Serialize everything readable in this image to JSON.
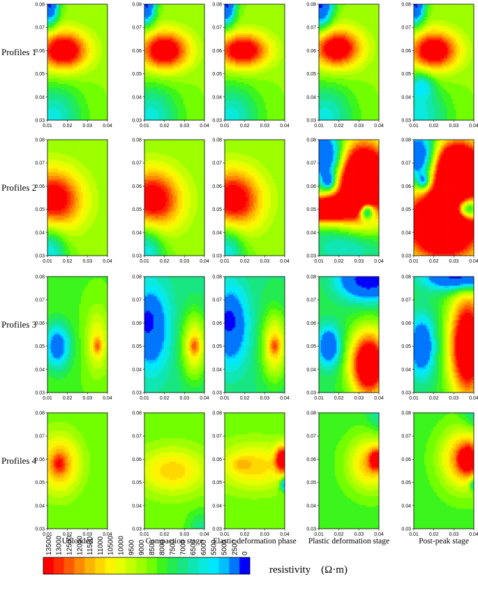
{
  "chart_data": {
    "type": "heatmap",
    "rows": [
      "Profiles 1",
      "Profiles 2",
      "Profiles 3",
      "Profiles 4"
    ],
    "columns": [
      "Unloaded",
      "Compaction stage",
      "Elastic deformation phase",
      "Plastic deformation stage",
      "Post-peak stage"
    ],
    "x_ticks": [
      "0.01",
      "0.02",
      "0.03",
      "0.04"
    ],
    "y_ticks": [
      "0.03",
      "0.04",
      "0.05",
      "0.06",
      "0.07",
      "0.08"
    ],
    "xlim": [
      0.01,
      0.04
    ],
    "ylim": [
      0.03,
      0.08
    ],
    "colorbar": {
      "title": "resistivity (Ω·m)",
      "levels": [
        "13500",
        "13000",
        "12500",
        "12000",
        "11500",
        "11000",
        "10500",
        "10000",
        "9500",
        "9000",
        "8500",
        "8000",
        "7500",
        "7000",
        "6500",
        "6000",
        "5500",
        "5000",
        "2500",
        "0"
      ],
      "colors": [
        "#ff0000",
        "#ff2a00",
        "#ff5a00",
        "#ff8a00",
        "#ffb400",
        "#ffd800",
        "#fff400",
        "#e6ff00",
        "#c4ff00",
        "#9dff00",
        "#72ff00",
        "#3cf51c",
        "#22ec52",
        "#18e682",
        "#10e6b2",
        "#0aeadc",
        "#00e8ff",
        "#00bfff",
        "#0076ff",
        "#0000ff"
      ]
    },
    "panels": [
      {
        "row": 0,
        "col": 0,
        "base": 8800,
        "features": [
          {
            "x": 0.018,
            "y": 0.06,
            "sx": 0.0085,
            "sy": 0.0058,
            "amp": 6200
          },
          {
            "x": 0.011,
            "y": 0.08,
            "sx": 0.003,
            "sy": 0.006,
            "amp": -6500
          },
          {
            "x": 0.013,
            "y": 0.031,
            "sx": 0.01,
            "sy": 0.01,
            "amp": -2800
          }
        ]
      },
      {
        "row": 0,
        "col": 1,
        "base": 8800,
        "features": [
          {
            "x": 0.02,
            "y": 0.06,
            "sx": 0.0085,
            "sy": 0.0058,
            "amp": 6100
          },
          {
            "x": 0.011,
            "y": 0.08,
            "sx": 0.003,
            "sy": 0.006,
            "amp": -6500
          },
          {
            "x": 0.013,
            "y": 0.031,
            "sx": 0.01,
            "sy": 0.01,
            "amp": -2800
          }
        ]
      },
      {
        "row": 0,
        "col": 2,
        "base": 8800,
        "features": [
          {
            "x": 0.019,
            "y": 0.06,
            "sx": 0.009,
            "sy": 0.0052,
            "amp": 5900
          },
          {
            "x": 0.011,
            "y": 0.08,
            "sx": 0.003,
            "sy": 0.006,
            "amp": -6500
          },
          {
            "x": 0.013,
            "y": 0.031,
            "sx": 0.01,
            "sy": 0.01,
            "amp": -2800
          }
        ]
      },
      {
        "row": 0,
        "col": 3,
        "base": 8800,
        "features": [
          {
            "x": 0.019,
            "y": 0.061,
            "sx": 0.0085,
            "sy": 0.0058,
            "amp": 6000
          },
          {
            "x": 0.011,
            "y": 0.08,
            "sx": 0.004,
            "sy": 0.007,
            "amp": -6500
          },
          {
            "x": 0.013,
            "y": 0.031,
            "sx": 0.01,
            "sy": 0.01,
            "amp": -2800
          }
        ]
      },
      {
        "row": 0,
        "col": 4,
        "base": 8800,
        "features": [
          {
            "x": 0.02,
            "y": 0.06,
            "sx": 0.0085,
            "sy": 0.0058,
            "amp": 6100
          },
          {
            "x": 0.011,
            "y": 0.08,
            "sx": 0.003,
            "sy": 0.006,
            "amp": -6500
          },
          {
            "x": 0.014,
            "y": 0.045,
            "sx": 0.004,
            "sy": 0.004,
            "amp": -2500
          },
          {
            "x": 0.013,
            "y": 0.031,
            "sx": 0.01,
            "sy": 0.01,
            "amp": -2800
          }
        ]
      },
      {
        "row": 1,
        "col": 0,
        "base": 8800,
        "features": [
          {
            "x": 0.013,
            "y": 0.054,
            "sx": 0.01,
            "sy": 0.009,
            "amp": 5800
          },
          {
            "x": 0.011,
            "y": 0.031,
            "sx": 0.006,
            "sy": 0.01,
            "amp": -3200
          }
        ]
      },
      {
        "row": 1,
        "col": 1,
        "base": 8800,
        "features": [
          {
            "x": 0.014,
            "y": 0.054,
            "sx": 0.01,
            "sy": 0.009,
            "amp": 5800
          },
          {
            "x": 0.011,
            "y": 0.031,
            "sx": 0.006,
            "sy": 0.01,
            "amp": -3200
          }
        ]
      },
      {
        "row": 1,
        "col": 2,
        "base": 8800,
        "features": [
          {
            "x": 0.014,
            "y": 0.054,
            "sx": 0.01,
            "sy": 0.009,
            "amp": 5800
          },
          {
            "x": 0.011,
            "y": 0.031,
            "sx": 0.006,
            "sy": 0.01,
            "amp": -3200
          }
        ]
      },
      {
        "row": 1,
        "col": 3,
        "base": 7800,
        "features": [
          {
            "x": 0.032,
            "y": 0.062,
            "sx": 0.01,
            "sy": 0.012,
            "amp": 11000
          },
          {
            "x": 0.011,
            "y": 0.05,
            "sx": 0.01,
            "sy": 0.004,
            "amp": 9000
          },
          {
            "x": 0.014,
            "y": 0.072,
            "sx": 0.006,
            "sy": 0.008,
            "amp": -6000
          },
          {
            "x": 0.015,
            "y": 0.062,
            "sx": 0.0022,
            "sy": 0.0025,
            "amp": -4000
          },
          {
            "x": 0.034,
            "y": 0.049,
            "sx": 0.0025,
            "sy": 0.0025,
            "amp": -7000
          },
          {
            "x": 0.025,
            "y": 0.034,
            "sx": 0.012,
            "sy": 0.006,
            "amp": -2000
          }
        ]
      },
      {
        "row": 1,
        "col": 4,
        "base": 8500,
        "features": [
          {
            "x": 0.025,
            "y": 0.044,
            "sx": 0.014,
            "sy": 0.011,
            "amp": 10000
          },
          {
            "x": 0.032,
            "y": 0.068,
            "sx": 0.009,
            "sy": 0.008,
            "amp": 10000
          },
          {
            "x": 0.013,
            "y": 0.072,
            "sx": 0.006,
            "sy": 0.008,
            "amp": -6000
          },
          {
            "x": 0.015,
            "y": 0.062,
            "sx": 0.0022,
            "sy": 0.0025,
            "amp": -4000
          },
          {
            "x": 0.037,
            "y": 0.05,
            "sx": 0.004,
            "sy": 0.003,
            "amp": -7000
          }
        ]
      },
      {
        "row": 2,
        "col": 0,
        "base": 8200,
        "features": [
          {
            "x": 0.015,
            "y": 0.05,
            "sx": 0.0045,
            "sy": 0.0068,
            "amp": -4200
          },
          {
            "x": 0.035,
            "y": 0.052,
            "sx": 0.004,
            "sy": 0.01,
            "amp": 2200
          },
          {
            "x": 0.035,
            "y": 0.05,
            "sx": 0.0016,
            "sy": 0.0025,
            "amp": 2200
          }
        ]
      },
      {
        "row": 2,
        "col": 1,
        "base": 7000,
        "features": [
          {
            "x": 0.013,
            "y": 0.058,
            "sx": 0.006,
            "sy": 0.012,
            "amp": -4000
          },
          {
            "x": 0.011,
            "y": 0.061,
            "sx": 0.0022,
            "sy": 0.003,
            "amp": -3000
          },
          {
            "x": 0.035,
            "y": 0.05,
            "sx": 0.0045,
            "sy": 0.01,
            "amp": 3800
          },
          {
            "x": 0.035,
            "y": 0.05,
            "sx": 0.0018,
            "sy": 0.0025,
            "amp": 1800
          }
        ]
      },
      {
        "row": 2,
        "col": 2,
        "base": 7200,
        "features": [
          {
            "x": 0.013,
            "y": 0.059,
            "sx": 0.006,
            "sy": 0.012,
            "amp": -4000
          },
          {
            "x": 0.012,
            "y": 0.061,
            "sx": 0.0022,
            "sy": 0.003,
            "amp": -3000
          },
          {
            "x": 0.035,
            "y": 0.05,
            "sx": 0.0045,
            "sy": 0.01,
            "amp": 3800
          },
          {
            "x": 0.035,
            "y": 0.05,
            "sx": 0.0018,
            "sy": 0.0025,
            "amp": 1800
          }
        ]
      },
      {
        "row": 2,
        "col": 3,
        "base": 7600,
        "features": [
          {
            "x": 0.035,
            "y": 0.042,
            "sx": 0.0065,
            "sy": 0.01,
            "amp": 8500
          },
          {
            "x": 0.035,
            "y": 0.079,
            "sx": 0.01,
            "sy": 0.006,
            "amp": -6500
          },
          {
            "x": 0.015,
            "y": 0.05,
            "sx": 0.004,
            "sy": 0.006,
            "amp": -4500
          }
        ]
      },
      {
        "row": 2,
        "col": 4,
        "base": 7600,
        "features": [
          {
            "x": 0.037,
            "y": 0.05,
            "sx": 0.0065,
            "sy": 0.016,
            "amp": 8500
          },
          {
            "x": 0.034,
            "y": 0.08,
            "sx": 0.012,
            "sy": 0.004,
            "amp": -6500
          },
          {
            "x": 0.014,
            "y": 0.05,
            "sx": 0.0045,
            "sy": 0.009,
            "amp": -4500
          }
        ]
      },
      {
        "row": 3,
        "col": 0,
        "base": 8300,
        "features": [
          {
            "x": 0.016,
            "y": 0.058,
            "sx": 0.0075,
            "sy": 0.009,
            "amp": 3500
          },
          {
            "x": 0.016,
            "y": 0.058,
            "sx": 0.0025,
            "sy": 0.003,
            "amp": 1800
          }
        ]
      },
      {
        "row": 3,
        "col": 1,
        "base": 8400,
        "features": [
          {
            "x": 0.024,
            "y": 0.055,
            "sx": 0.012,
            "sy": 0.007,
            "amp": 2700
          },
          {
            "x": 0.038,
            "y": 0.03,
            "sx": 0.004,
            "sy": 0.005,
            "amp": -1500
          }
        ]
      },
      {
        "row": 3,
        "col": 2,
        "base": 8400,
        "features": [
          {
            "x": 0.025,
            "y": 0.057,
            "sx": 0.013,
            "sy": 0.007,
            "amp": 2700
          },
          {
            "x": 0.039,
            "y": 0.06,
            "sx": 0.0025,
            "sy": 0.004,
            "amp": 5500
          },
          {
            "x": 0.04,
            "y": 0.049,
            "sx": 0.0015,
            "sy": 0.002,
            "amp": -4500
          },
          {
            "x": 0.018,
            "y": 0.058,
            "sx": 0.003,
            "sy": 0.002,
            "amp": 1000
          }
        ]
      },
      {
        "row": 3,
        "col": 3,
        "base": 8000,
        "features": [
          {
            "x": 0.036,
            "y": 0.058,
            "sx": 0.008,
            "sy": 0.008,
            "amp": 3500
          },
          {
            "x": 0.039,
            "y": 0.06,
            "sx": 0.0025,
            "sy": 0.003,
            "amp": 4500
          },
          {
            "x": 0.04,
            "y": 0.08,
            "sx": 0.004,
            "sy": 0.005,
            "amp": -1500
          }
        ]
      },
      {
        "row": 3,
        "col": 4,
        "base": 8000,
        "features": [
          {
            "x": 0.036,
            "y": 0.06,
            "sx": 0.0085,
            "sy": 0.009,
            "amp": 4500
          },
          {
            "x": 0.037,
            "y": 0.06,
            "sx": 0.0032,
            "sy": 0.0038,
            "amp": 3500
          },
          {
            "x": 0.04,
            "y": 0.049,
            "sx": 0.0015,
            "sy": 0.002,
            "amp": -3000
          },
          {
            "x": 0.04,
            "y": 0.08,
            "sx": 0.004,
            "sy": 0.005,
            "amp": -1500
          }
        ]
      }
    ]
  }
}
